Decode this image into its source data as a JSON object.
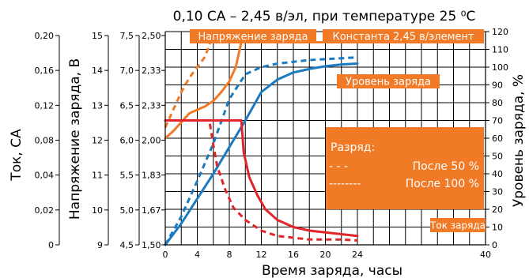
{
  "chart_data": {
    "type": "line",
    "title": "0,10 СА – 2,45 в/эл, при температуре 25 ⁰С",
    "xlabel": "Время заряда, часы",
    "x_ticks": [
      "0",
      "4",
      "8",
      "12",
      "16",
      "20",
      "24",
      "40"
    ],
    "x_tick_values": [
      0,
      4,
      8,
      12,
      16,
      20,
      24,
      40
    ],
    "xlim": [
      0,
      40
    ],
    "grid": true,
    "left_axes": [
      {
        "label": "Ток, СА",
        "ticks": [
          "0",
          "0,02",
          "0,04",
          "0,08",
          "0,12",
          "0,16",
          "0,20"
        ]
      },
      {
        "label": "Напряжение заряда, В",
        "ticks": [
          "9",
          "10",
          "11",
          "12",
          "13",
          "14",
          "15"
        ]
      },
      {
        "label": "",
        "ticks": [
          "4,5",
          "5,0",
          "5,5",
          "6,0",
          "6,5",
          "7,0",
          "7,5"
        ]
      },
      {
        "label": "",
        "ticks": [
          "1,50",
          "1,67",
          "1,83",
          "2,00",
          "2,33",
          "2,33",
          "2,50"
        ]
      }
    ],
    "right_axis": {
      "label": "Уровень заряда, %",
      "ticks": [
        "0",
        "10",
        "20",
        "30",
        "40",
        "50",
        "60",
        "70",
        "80",
        "90",
        "100",
        "110",
        "120"
      ],
      "ylim": [
        0,
        120
      ]
    },
    "series": [
      {
        "name": "Напряжение заряда",
        "color": "#f07a26",
        "dash": "solid",
        "unit": "%",
        "x": [
          0,
          1,
          2,
          3,
          4,
          5,
          6,
          7,
          8,
          8.8,
          9.5,
          24
        ],
        "y": [
          60,
          64,
          69,
          74,
          76,
          78,
          81,
          86,
          92,
          100,
          114,
          114
        ]
      },
      {
        "name": "",
        "color": "#f07a26",
        "dash": "dash",
        "unit": "%",
        "x": [
          0,
          1,
          2,
          3,
          4,
          5,
          5.6,
          24
        ],
        "y": [
          66,
          76,
          86,
          94,
          100,
          106,
          114,
          114
        ]
      },
      {
        "name": "Уровень заряда",
        "color": "#1a7bc0",
        "dash": "solid",
        "unit": "%",
        "x": [
          0,
          2,
          4,
          6,
          8,
          10,
          12,
          14,
          16,
          18,
          20,
          22,
          24
        ],
        "y": [
          0,
          12,
          26,
          40,
          55,
          70,
          86,
          93,
          97,
          99,
          100.5,
          101.5,
          102
        ]
      },
      {
        "name": "",
        "color": "#1a7bc0",
        "dash": "dash",
        "unit": "%",
        "x": [
          0,
          2,
          4,
          6,
          8,
          10,
          12,
          14,
          16,
          18,
          20,
          22,
          24
        ],
        "y": [
          0,
          16,
          36,
          57,
          82,
          96,
          100,
          102,
          103,
          104,
          104.5,
          105,
          105.5
        ]
      },
      {
        "name": "Ток заряда",
        "color": "#e0262a",
        "dash": "solid",
        "unit": "%",
        "x": [
          0,
          9.5,
          9.8,
          10.5,
          11.5,
          12.5,
          14,
          16,
          18,
          20,
          22,
          24
        ],
        "y": [
          70,
          70,
          52,
          38,
          28,
          20,
          14,
          10,
          8,
          7,
          6,
          5
        ]
      },
      {
        "name": "",
        "color": "#e0262a",
        "dash": "dash",
        "unit": "%",
        "x": [
          0,
          5.5,
          6,
          6.5,
          7.5,
          8.5,
          10,
          12,
          14,
          16,
          18,
          20,
          22,
          24
        ],
        "y": [
          70,
          70,
          56,
          44,
          31,
          21,
          14,
          8,
          5,
          4,
          3,
          3,
          3,
          2.5
        ]
      }
    ],
    "annotations": [
      {
        "text": "Напряжение заряда"
      },
      {
        "text": "Константа 2,45 в/элемент"
      },
      {
        "text": "Уровень заряда"
      },
      {
        "text": "Ток заряда"
      }
    ],
    "legend": {
      "title": "Разряд:",
      "items": [
        {
          "marker": "- - -",
          "label": "После 50 %"
        },
        {
          "marker": "--------",
          "label": "После 100 %"
        }
      ],
      "placement": "center-right"
    },
    "accent_color": "#f07a26"
  }
}
